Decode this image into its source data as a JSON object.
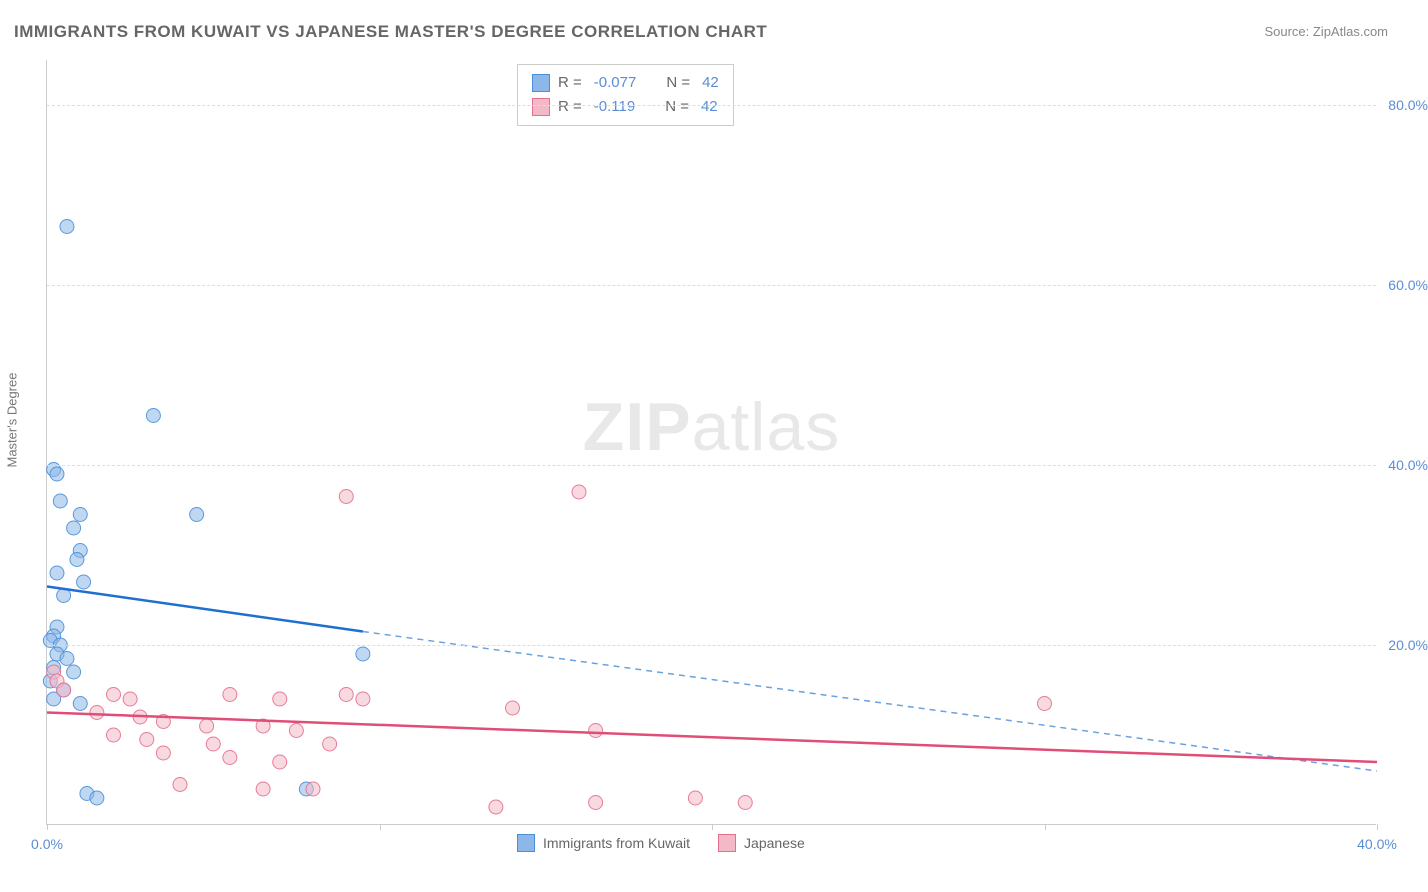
{
  "title": "IMMIGRANTS FROM KUWAIT VS JAPANESE MASTER'S DEGREE CORRELATION CHART",
  "source": "Source: ZipAtlas.com",
  "watermark": {
    "bold": "ZIP",
    "light": "atlas"
  },
  "y_axis_label": "Master's Degree",
  "chart": {
    "type": "scatter-with-trend",
    "background_color": "#ffffff",
    "grid_color": "#dddddd",
    "axis_color": "#cccccc",
    "xlim": [
      0,
      40
    ],
    "ylim": [
      0,
      85
    ],
    "x_ticks": [
      0,
      10,
      20,
      30,
      40
    ],
    "x_tick_labels": [
      "0.0%",
      "",
      "",
      "",
      "40.0%"
    ],
    "y_ticks": [
      20,
      40,
      60,
      80
    ],
    "y_tick_labels": [
      "20.0%",
      "40.0%",
      "60.0%",
      "80.0%"
    ],
    "tick_label_color": "#5b8dd6",
    "tick_label_fontsize": 14,
    "marker_radius": 7,
    "marker_opacity": 0.55,
    "marker_stroke_opacity": 0.9,
    "trend_line_width": 2.5,
    "series": [
      {
        "name": "Immigrants from Kuwait",
        "fill_color": "#8db7e8",
        "stroke_color": "#4a90d9",
        "trend_solid_color": "#1f6fd0",
        "trend_dashed_color": "#6aa2de",
        "r_value": "-0.077",
        "n_value": "42",
        "trend": {
          "x1": 0,
          "y1": 26.5,
          "x_solid_end": 9.5,
          "y_solid_end": 21.5,
          "x2": 40,
          "y2": 6.0
        },
        "points": [
          [
            0.6,
            66.5
          ],
          [
            3.2,
            45.5
          ],
          [
            0.2,
            39.5
          ],
          [
            0.3,
            39.0
          ],
          [
            0.4,
            36.0
          ],
          [
            1.0,
            34.5
          ],
          [
            4.5,
            34.5
          ],
          [
            0.8,
            33.0
          ],
          [
            1.0,
            30.5
          ],
          [
            0.9,
            29.5
          ],
          [
            0.3,
            28.0
          ],
          [
            1.1,
            27.0
          ],
          [
            0.5,
            25.5
          ],
          [
            0.3,
            22.0
          ],
          [
            0.2,
            21.0
          ],
          [
            0.1,
            20.5
          ],
          [
            0.4,
            20.0
          ],
          [
            0.3,
            19.0
          ],
          [
            0.6,
            18.5
          ],
          [
            0.2,
            17.5
          ],
          [
            0.8,
            17.0
          ],
          [
            0.1,
            16.0
          ],
          [
            0.5,
            15.0
          ],
          [
            0.2,
            14.0
          ],
          [
            1.0,
            13.5
          ],
          [
            9.5,
            19.0
          ],
          [
            7.8,
            4.0
          ],
          [
            1.2,
            3.5
          ],
          [
            1.5,
            3.0
          ]
        ]
      },
      {
        "name": "Japanese",
        "fill_color": "#f3b9c6",
        "stroke_color": "#e66f8f",
        "trend_solid_color": "#e04d77",
        "r_value": "-0.119",
        "n_value": "42",
        "trend": {
          "x1": 0,
          "y1": 12.5,
          "x_solid_end": 40,
          "y_solid_end": 7.0,
          "x2": 40,
          "y2": 7.0
        },
        "points": [
          [
            9.0,
            36.5
          ],
          [
            16.0,
            37.0
          ],
          [
            0.2,
            17.0
          ],
          [
            0.3,
            16.0
          ],
          [
            0.5,
            15.0
          ],
          [
            2.0,
            14.5
          ],
          [
            2.5,
            14.0
          ],
          [
            5.5,
            14.5
          ],
          [
            7.0,
            14.0
          ],
          [
            9.0,
            14.5
          ],
          [
            9.5,
            14.0
          ],
          [
            1.5,
            12.5
          ],
          [
            2.8,
            12.0
          ],
          [
            3.5,
            11.5
          ],
          [
            4.8,
            11.0
          ],
          [
            6.5,
            11.0
          ],
          [
            2.0,
            10.0
          ],
          [
            3.0,
            9.5
          ],
          [
            5.0,
            9.0
          ],
          [
            7.5,
            10.5
          ],
          [
            8.5,
            9.0
          ],
          [
            14.0,
            13.0
          ],
          [
            16.5,
            10.5
          ],
          [
            3.5,
            8.0
          ],
          [
            5.5,
            7.5
          ],
          [
            7.0,
            7.0
          ],
          [
            4.0,
            4.5
          ],
          [
            6.5,
            4.0
          ],
          [
            8.0,
            4.0
          ],
          [
            13.5,
            2.0
          ],
          [
            16.5,
            2.5
          ],
          [
            19.5,
            3.0
          ],
          [
            21.0,
            2.5
          ],
          [
            30.0,
            13.5
          ]
        ]
      }
    ]
  },
  "legend_top": {
    "r_label": "R =",
    "n_label": "N ="
  },
  "legend_bottom": {
    "items": [
      "Immigrants from Kuwait",
      "Japanese"
    ]
  }
}
